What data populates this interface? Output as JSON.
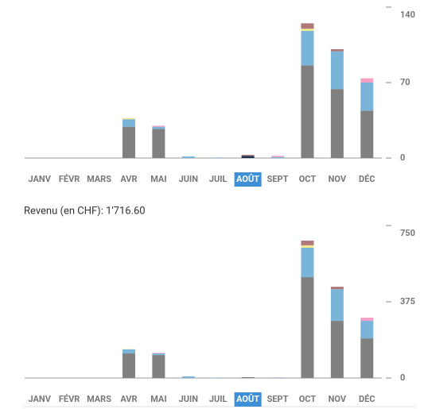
{
  "chart_data": [
    {
      "type": "stacked_bar",
      "categories": [
        "JANV",
        "FÉVR",
        "MARS",
        "AVR",
        "MAI",
        "JUIN",
        "JUIL",
        "AOÛT",
        "SEPT",
        "OCT",
        "NOV",
        "DÉC"
      ],
      "selected_category": "AOÛT",
      "ylim": [
        0,
        140
      ],
      "yticks": [
        0,
        70,
        140
      ],
      "series": [
        {
          "color": "#808080",
          "values": [
            0,
            0,
            0,
            29,
            27,
            0,
            0,
            0,
            0,
            86,
            64,
            44
          ]
        },
        {
          "color": "#1f2f4f",
          "values": [
            0,
            0,
            0,
            0,
            0,
            0,
            0,
            2,
            0,
            0,
            0,
            0
          ]
        },
        {
          "color": "#7ab4da",
          "values": [
            0,
            0,
            0,
            7,
            2,
            1.5,
            0.5,
            0,
            1,
            32,
            35,
            26
          ]
        },
        {
          "color": "#f0e68c",
          "values": [
            0,
            0,
            0,
            1,
            0,
            0,
            0,
            0,
            0,
            2,
            0,
            0
          ]
        },
        {
          "color": "#f4a0c4",
          "values": [
            0,
            0,
            0,
            0,
            1,
            0,
            0,
            0,
            1,
            0,
            0,
            4
          ]
        },
        {
          "color": "#b07878",
          "values": [
            0,
            0,
            0,
            0,
            0,
            0,
            0,
            1,
            0,
            5,
            2,
            0
          ]
        }
      ]
    },
    {
      "type": "stacked_bar",
      "subtitle": "Revenu (en CHF): 1'716.60",
      "categories": [
        "JANV",
        "FÉVR",
        "MARS",
        "AVR",
        "MAI",
        "JUIN",
        "JUIL",
        "AOÛT",
        "SEPT",
        "OCT",
        "NOV",
        "DÉC"
      ],
      "selected_category": "AOÛT",
      "ylim": [
        0,
        750
      ],
      "yticks": [
        0,
        375,
        750
      ],
      "series": [
        {
          "color": "#808080",
          "values": [
            0,
            0,
            0,
            121,
            113,
            0,
            0,
            0,
            0,
            496,
            281,
            195
          ]
        },
        {
          "color": "#1f2f4f",
          "values": [
            0,
            0,
            0,
            0,
            0,
            0,
            0,
            2,
            0,
            0,
            0,
            0
          ]
        },
        {
          "color": "#7ab4da",
          "values": [
            0,
            0,
            0,
            20,
            8,
            8,
            2,
            0,
            2,
            145,
            156,
            86
          ]
        },
        {
          "color": "#f0e68c",
          "values": [
            0,
            0,
            0,
            1,
            0,
            0,
            0,
            0,
            0,
            12,
            0,
            0
          ]
        },
        {
          "color": "#f4a0c4",
          "values": [
            0,
            0,
            0,
            0,
            3,
            0,
            0,
            0,
            1,
            0,
            0,
            16
          ]
        },
        {
          "color": "#b07878",
          "values": [
            0,
            0,
            0,
            0,
            0,
            0,
            0,
            1,
            0,
            23,
            12,
            0
          ]
        }
      ]
    }
  ]
}
